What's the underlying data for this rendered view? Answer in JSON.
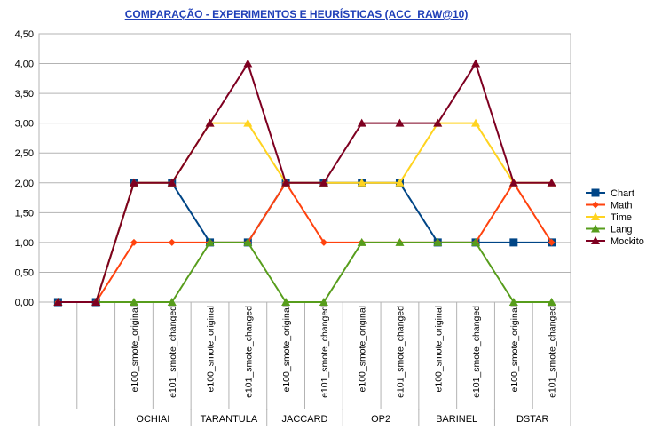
{
  "chart_data": {
    "type": "line",
    "title": "COMPARAÇÃO - EXPERIMENTOS E HEURÍSTICAS (ACC_RAW@10)",
    "ylim": [
      0,
      4.5
    ],
    "yticks": [
      "0,00",
      "0,50",
      "1,00",
      "1,50",
      "2,00",
      "2,50",
      "3,00",
      "3,50",
      "4,00",
      "4,50"
    ],
    "grid": "horizontal",
    "legend_position": "right",
    "categories": [
      "",
      "",
      "e100_smote_original",
      "e101_smote_changed",
      "e100_smote_original",
      "e101_smote_changed",
      "e100_smote_original",
      "e101_smote_changed",
      "e100_smote_original",
      "e101_smote_changed",
      "e100_smote_original",
      "e101_smote_changed",
      "e100_smote_original",
      "e101_smote_changed"
    ],
    "groups": [
      {
        "label": "OCHIAI",
        "start": 2,
        "end": 3
      },
      {
        "label": "TARANTULA",
        "start": 4,
        "end": 5
      },
      {
        "label": "JACCARD",
        "start": 6,
        "end": 7
      },
      {
        "label": "OP2",
        "start": 8,
        "end": 9
      },
      {
        "label": "BARINEL",
        "start": 10,
        "end": 11
      },
      {
        "label": "DSTAR",
        "start": 12,
        "end": 13
      }
    ],
    "series": [
      {
        "name": "Chart",
        "color": "#004586",
        "marker": "square",
        "values": [
          0,
          0,
          2,
          2,
          1,
          1,
          2,
          2,
          2,
          2,
          1,
          1,
          1,
          1
        ]
      },
      {
        "name": "Math",
        "color": "#ff420e",
        "marker": "diamond",
        "values": [
          0,
          0,
          1,
          1,
          1,
          1,
          2,
          1,
          1,
          1,
          1,
          1,
          2,
          1
        ]
      },
      {
        "name": "Time",
        "color": "#ffd320",
        "marker": "triangle",
        "values": [
          0,
          0,
          2,
          2,
          3,
          3,
          2,
          2,
          2,
          2,
          3,
          3,
          2,
          2
        ]
      },
      {
        "name": "Lang",
        "color": "#579d1c",
        "marker": "triangle",
        "values": [
          0,
          0,
          0,
          0,
          1,
          1,
          0,
          0,
          1,
          1,
          1,
          1,
          0,
          0
        ]
      },
      {
        "name": "Mockito",
        "color": "#7e0021",
        "marker": "triangle",
        "values": [
          0,
          0,
          2,
          2,
          3,
          4,
          2,
          2,
          3,
          3,
          3,
          4,
          2,
          2
        ]
      }
    ]
  }
}
